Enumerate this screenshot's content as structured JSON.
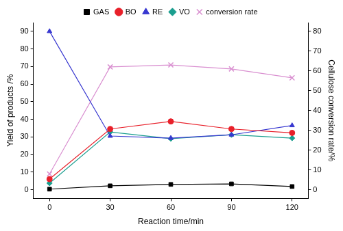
{
  "chart_data": {
    "type": "line",
    "x_label": "Reaction time/min",
    "y_label": "Yield of products /%",
    "y2_label": "Cellulose conversion rate/%",
    "x": [
      0,
      30,
      60,
      90,
      120
    ],
    "xlim": [
      -8,
      128
    ],
    "xticks": [
      0,
      30,
      60,
      90,
      120
    ],
    "ylim": [
      -5,
      95
    ],
    "yticks": [
      0,
      10,
      20,
      30,
      40,
      50,
      60,
      70,
      80,
      90
    ],
    "y2lim": [
      -4.4,
      84.4
    ],
    "y2ticks": [
      0,
      10,
      20,
      30,
      40,
      50,
      60,
      70,
      80
    ],
    "grid": false,
    "legend": "top",
    "series": [
      {
        "name": "GAS",
        "color": "#000000",
        "marker": "square",
        "values": [
          0.3,
          2.2,
          3.0,
          3.3,
          1.8
        ]
      },
      {
        "name": "BO",
        "color": "#e8202a",
        "marker": "circle",
        "values": [
          6.0,
          34.5,
          38.8,
          34.5,
          32.3
        ]
      },
      {
        "name": "RE",
        "color": "#3838d0",
        "marker": "triangle",
        "values": [
          90.0,
          30.5,
          29.3,
          31.2,
          36.5
        ]
      },
      {
        "name": "VO",
        "color": "#1a9e8f",
        "marker": "diamond",
        "values": [
          3.7,
          32.8,
          29.0,
          31.2,
          29.3
        ]
      },
      {
        "name": "conversion rate",
        "color": "#d98fd0",
        "marker": "x",
        "axis": "y2",
        "values": [
          8.0,
          62.0,
          63.0,
          61.0,
          56.5
        ]
      }
    ]
  }
}
